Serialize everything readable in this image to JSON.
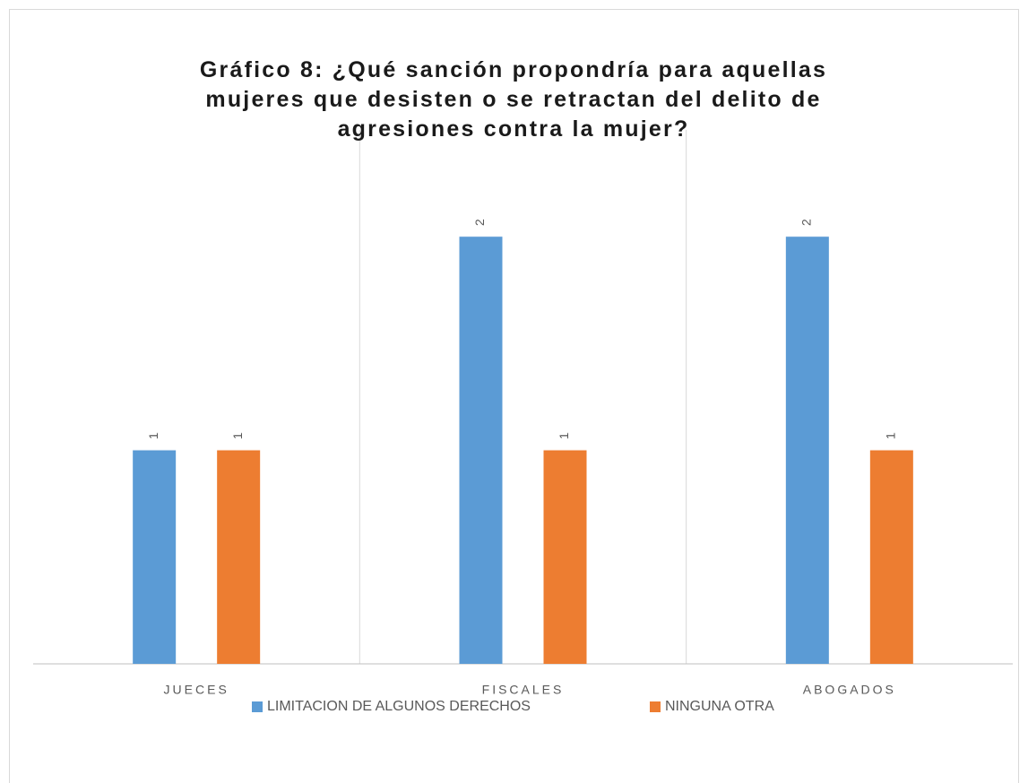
{
  "chart_data": {
    "type": "bar",
    "title": "Gráfico 8: ¿Qué sanción propondría para aquellas mujeres que desisten o se retractan del delito de agresiones contra la mujer?",
    "categories": [
      "JUECES",
      "FISCALES",
      "ABOGADOS"
    ],
    "series": [
      {
        "name": "LIMITACION DE ALGUNOS DERECHOS",
        "color": "#5b9bd5",
        "values": [
          1,
          2,
          2
        ]
      },
      {
        "name": "NINGUNA OTRA",
        "color": "#ed7d31",
        "values": [
          1,
          1,
          1
        ]
      }
    ],
    "ylim": [
      0,
      2.5
    ],
    "legend": "bottom"
  }
}
